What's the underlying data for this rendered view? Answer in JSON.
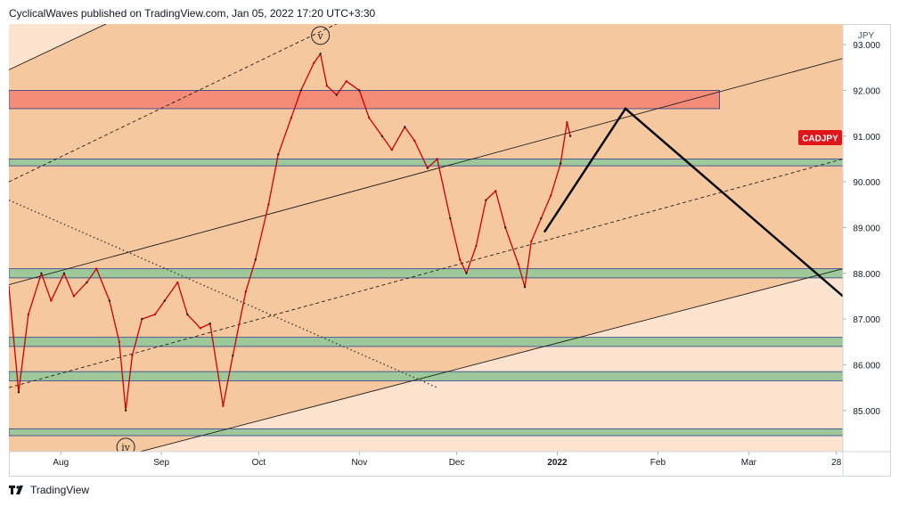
{
  "header": {
    "published_text": "CyclicalWaves published on TradingView.com, Jan 05, 2022 17:20 UTC+3:30"
  },
  "footer": {
    "brand": "TradingView"
  },
  "colors": {
    "background_fill": "#f6c8a0",
    "upper_fill": "#fbe3cf",
    "lower_fill": "#fbe3cf",
    "resistance_zone": "#f28b78",
    "support_zone": "#9fc89a",
    "candles": "#cc0000",
    "projection": "#000000",
    "symbol_badge": "#e0141b"
  },
  "chart_data": {
    "type": "line",
    "symbol": "CADJPY",
    "currency": "JPY",
    "last_price_label": "CADJPY",
    "y_ticks": [
      "93.000",
      "92.000",
      "91.000",
      "90.000",
      "89.000",
      "88.000",
      "87.000",
      "86.000",
      "85.000"
    ],
    "y_tick_values": [
      93,
      92,
      91,
      90,
      89,
      88,
      87,
      86,
      85
    ],
    "ylim": [
      84.1,
      93.45
    ],
    "x_ticks": [
      "Aug",
      "Sep",
      "Oct",
      "Nov",
      "Dec",
      "2022",
      "Feb",
      "Mar",
      "28"
    ],
    "x_tick_dates": [
      "2021-08-01",
      "2021-09-01",
      "2021-10-01",
      "2021-11-01",
      "2021-12-01",
      "2022-01-01",
      "2022-02-01",
      "2022-03-01",
      "2022-03-28"
    ],
    "xlim": [
      "2021-07-16",
      "2022-03-30"
    ],
    "series": [
      {
        "values": [
          {
            "x": "2021-07-16",
            "y": 87.7
          },
          {
            "x": "2021-07-19",
            "y": 85.4
          },
          {
            "x": "2021-07-22",
            "y": 87.1
          },
          {
            "x": "2021-07-26",
            "y": 88.0
          },
          {
            "x": "2021-07-29",
            "y": 87.4
          },
          {
            "x": "2021-08-02",
            "y": 88.0
          },
          {
            "x": "2021-08-05",
            "y": 87.5
          },
          {
            "x": "2021-08-09",
            "y": 87.8
          },
          {
            "x": "2021-08-12",
            "y": 88.1
          },
          {
            "x": "2021-08-16",
            "y": 87.4
          },
          {
            "x": "2021-08-19",
            "y": 86.5
          },
          {
            "x": "2021-08-21",
            "y": 85.0
          },
          {
            "x": "2021-08-23",
            "y": 86.2
          },
          {
            "x": "2021-08-26",
            "y": 87.0
          },
          {
            "x": "2021-08-30",
            "y": 87.1
          },
          {
            "x": "2021-09-02",
            "y": 87.4
          },
          {
            "x": "2021-09-06",
            "y": 87.8
          },
          {
            "x": "2021-09-09",
            "y": 87.1
          },
          {
            "x": "2021-09-13",
            "y": 86.8
          },
          {
            "x": "2021-09-16",
            "y": 86.9
          },
          {
            "x": "2021-09-20",
            "y": 85.1
          },
          {
            "x": "2021-09-23",
            "y": 86.2
          },
          {
            "x": "2021-09-27",
            "y": 87.6
          },
          {
            "x": "2021-09-30",
            "y": 88.3
          },
          {
            "x": "2021-10-04",
            "y": 89.5
          },
          {
            "x": "2021-10-07",
            "y": 90.6
          },
          {
            "x": "2021-10-11",
            "y": 91.4
          },
          {
            "x": "2021-10-14",
            "y": 92.0
          },
          {
            "x": "2021-10-18",
            "y": 92.6
          },
          {
            "x": "2021-10-20",
            "y": 92.8
          },
          {
            "x": "2021-10-22",
            "y": 92.1
          },
          {
            "x": "2021-10-25",
            "y": 91.9
          },
          {
            "x": "2021-10-28",
            "y": 92.2
          },
          {
            "x": "2021-11-01",
            "y": 92.0
          },
          {
            "x": "2021-11-04",
            "y": 91.4
          },
          {
            "x": "2021-11-08",
            "y": 91.0
          },
          {
            "x": "2021-11-11",
            "y": 90.7
          },
          {
            "x": "2021-11-15",
            "y": 91.2
          },
          {
            "x": "2021-11-18",
            "y": 90.9
          },
          {
            "x": "2021-11-22",
            "y": 90.3
          },
          {
            "x": "2021-11-25",
            "y": 90.5
          },
          {
            "x": "2021-11-29",
            "y": 89.2
          },
          {
            "x": "2021-12-02",
            "y": 88.3
          },
          {
            "x": "2021-12-04",
            "y": 88.0
          },
          {
            "x": "2021-12-07",
            "y": 88.6
          },
          {
            "x": "2021-12-10",
            "y": 89.6
          },
          {
            "x": "2021-12-13",
            "y": 89.8
          },
          {
            "x": "2021-12-16",
            "y": 89.0
          },
          {
            "x": "2021-12-20",
            "y": 88.2
          },
          {
            "x": "2021-12-22",
            "y": 87.7
          },
          {
            "x": "2021-12-24",
            "y": 88.7
          },
          {
            "x": "2021-12-27",
            "y": 89.2
          },
          {
            "x": "2021-12-30",
            "y": 89.7
          },
          {
            "x": "2022-01-02",
            "y": 90.4
          },
          {
            "x": "2022-01-04",
            "y": 91.3
          },
          {
            "x": "2022-01-05",
            "y": 91.0
          }
        ]
      }
    ],
    "zones": [
      {
        "kind": "resistance",
        "from": "2021-07-16",
        "to": "2022-02-20",
        "y_low": 91.6,
        "y_high": 92.0
      },
      {
        "kind": "support",
        "from": "2021-07-16",
        "to": "2022-03-30",
        "y_low": 90.35,
        "y_high": 90.5
      },
      {
        "kind": "support",
        "from": "2021-07-16",
        "to": "2022-03-30",
        "y_low": 87.9,
        "y_high": 88.1
      },
      {
        "kind": "support",
        "from": "2021-07-16",
        "to": "2022-03-30",
        "y_low": 86.4,
        "y_high": 86.6
      },
      {
        "kind": "support",
        "from": "2021-07-16",
        "to": "2022-03-30",
        "y_low": 85.65,
        "y_high": 85.85
      },
      {
        "kind": "support",
        "from": "2021-07-16",
        "to": "2022-03-30",
        "y_low": 84.45,
        "y_high": 84.6
      }
    ],
    "channel_lines": [
      {
        "style": "solid",
        "points": [
          {
            "x": "2021-07-16",
            "y": 92.45
          },
          {
            "x": "2021-10-18",
            "y": 95.6
          }
        ]
      },
      {
        "style": "dashed",
        "points": [
          {
            "x": "2021-07-16",
            "y": 90.0
          },
          {
            "x": "2021-12-15",
            "y": 95.2
          }
        ]
      },
      {
        "style": "solid",
        "points": [
          {
            "x": "2021-07-16",
            "y": 87.75
          },
          {
            "x": "2022-03-30",
            "y": 92.7
          }
        ]
      },
      {
        "style": "dashed",
        "points": [
          {
            "x": "2021-07-16",
            "y": 85.5
          },
          {
            "x": "2022-03-30",
            "y": 90.5
          }
        ]
      },
      {
        "style": "solid",
        "points": [
          {
            "x": "2021-08-20",
            "y": 84.0
          },
          {
            "x": "2022-03-30",
            "y": 88.1
          }
        ]
      },
      {
        "style": "dotted",
        "points": [
          {
            "x": "2021-07-16",
            "y": 89.6
          },
          {
            "x": "2021-11-25",
            "y": 85.5
          }
        ]
      }
    ],
    "projection": [
      {
        "x": "2021-12-28",
        "y": 88.9
      },
      {
        "x": "2022-01-22",
        "y": 91.6
      },
      {
        "x": "2022-03-30",
        "y": 87.5
      }
    ],
    "annotations": [
      {
        "text": "v",
        "x": "2021-10-20",
        "y": 93.2
      },
      {
        "text": "iv",
        "x": "2021-08-21",
        "y": 84.2
      }
    ]
  }
}
